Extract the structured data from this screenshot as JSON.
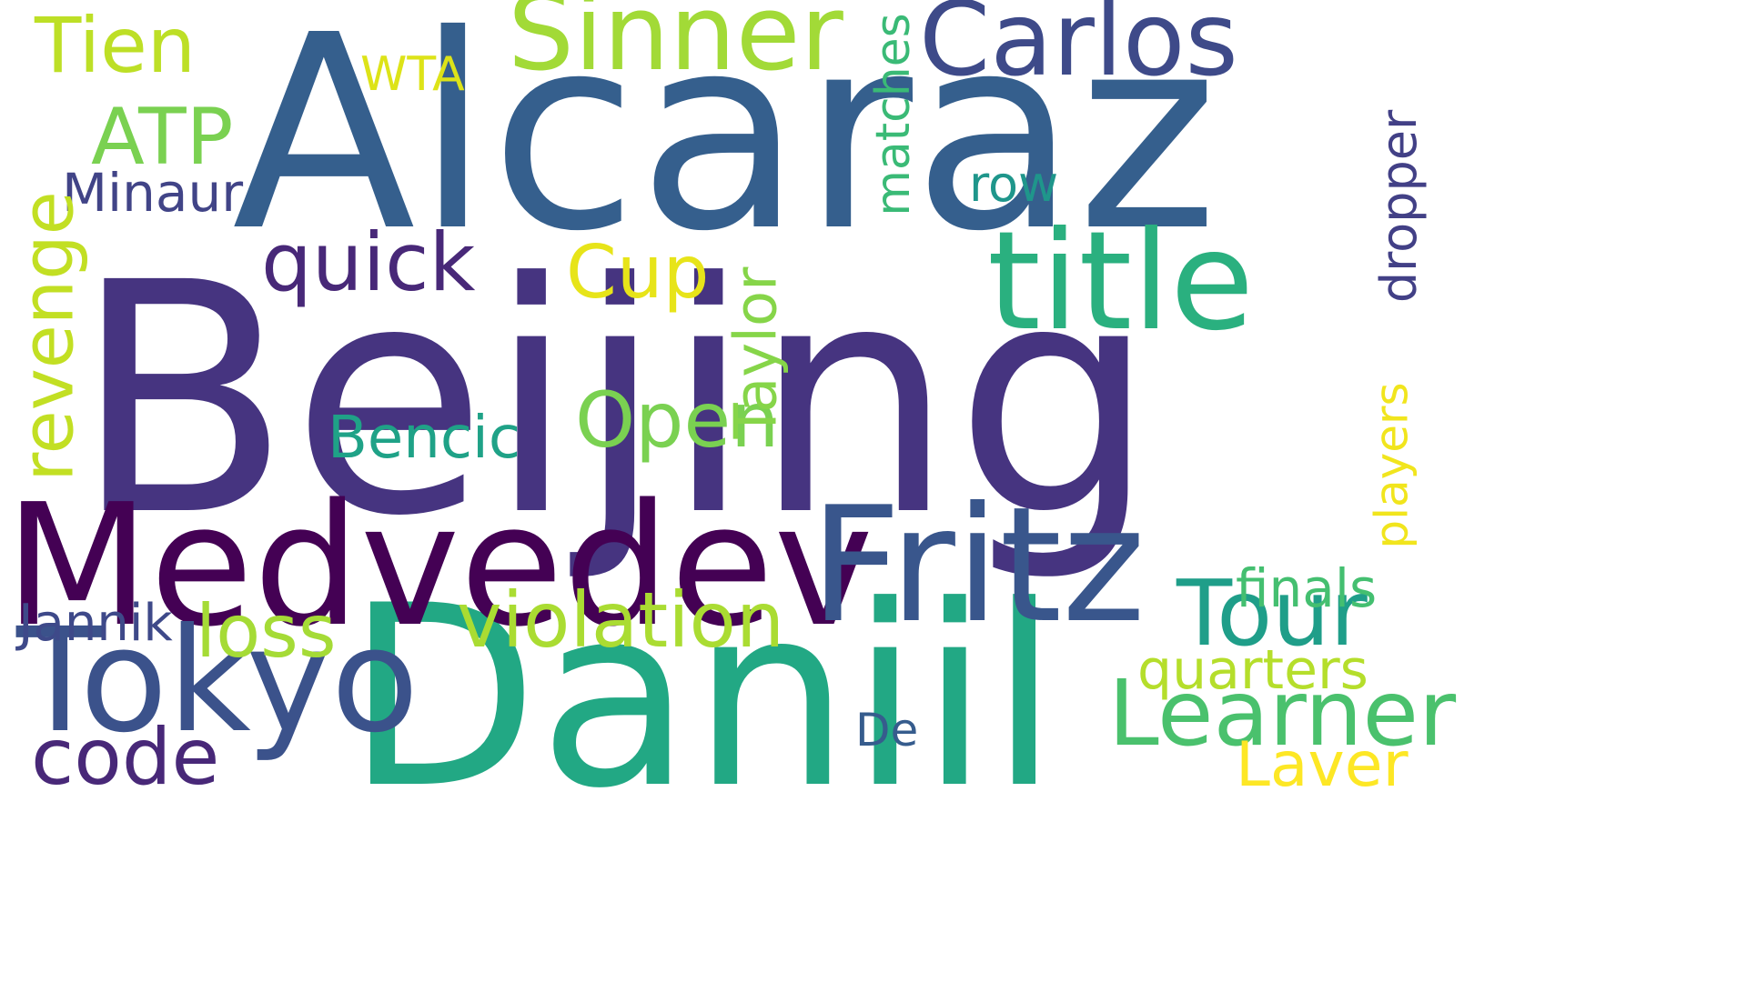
{
  "words": {
    "beijing": "Beijing",
    "alcaraz": "Alcaraz",
    "daniil": "Daniil",
    "medvedev": "Medvedev",
    "fritz": "Fritz",
    "tokyo": "Tokyo",
    "title": "title",
    "sinner": "Sinner",
    "carlos": "Carlos",
    "tour": "Tour",
    "learner": "Learner",
    "violation": "violation",
    "quick": "quick",
    "open": "Open",
    "taylor": "Taylor",
    "revenge": "revenge",
    "tien": "Tien",
    "atp": "ATP",
    "cup": "Cup",
    "code": "code",
    "loss": "loss",
    "matches": "matches",
    "bencic": "Bencic",
    "laver": "Laver",
    "finals": "finals",
    "quarters": "quarters",
    "minaur": "Minaur",
    "jannik": "Jannik",
    "dropper": "dropper",
    "players": "players",
    "row": "row",
    "wta": "WTA",
    "de": "De"
  },
  "colors": {
    "beijing": "#463480",
    "alcaraz": "#355f8d",
    "daniil": "#22a884",
    "medvedev": "#440154",
    "fritz": "#39568c",
    "tokyo": "#3b528b",
    "title": "#2ab07f",
    "sinner": "#a2da37",
    "carlos": "#3e4a89",
    "tour": "#1f9e89",
    "learner": "#4ac16d",
    "violation": "#aadc32",
    "quick": "#482878",
    "open": "#7ad151",
    "taylor": "#86d549",
    "revenge": "#c2df23",
    "tien": "#bddf26",
    "atp": "#7ad151",
    "cup": "#e7e419",
    "code": "#482878",
    "loss": "#a5db36",
    "matches": "#3aba76",
    "bencic": "#1fa287",
    "laver": "#fde725",
    "finals": "#44bf70",
    "quarters": "#b5de2b",
    "minaur": "#414487",
    "jannik": "#3e4989",
    "dropper": "#424086",
    "players": "#f1e51d",
    "row": "#1f968b",
    "wta": "#dde318",
    "de": "#365c8d"
  }
}
